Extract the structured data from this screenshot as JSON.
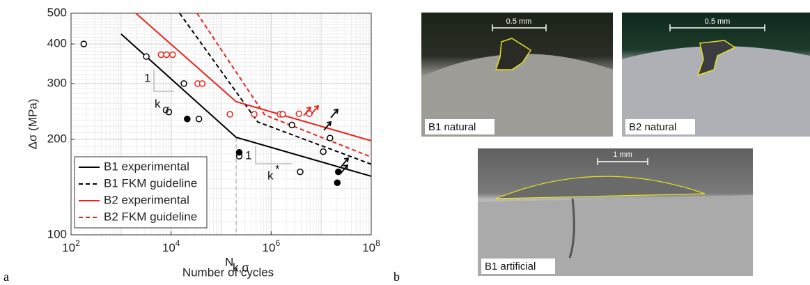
{
  "chart_data": {
    "type": "line",
    "ylabel": "Δσ (MPa)",
    "xlabel": "Number of cycles",
    "xlog": true,
    "ylog": true,
    "grid": true,
    "legend": "lower left",
    "xlim": [
      100,
      100000000
    ],
    "ylim": [
      100,
      500
    ],
    "xticks": [
      {
        "value": 100,
        "label": "10^2"
      },
      {
        "value": 10000,
        "label": "10^4"
      },
      {
        "value": 1000000,
        "label": "10^6"
      },
      {
        "value": 100000000,
        "label": "10^8"
      }
    ],
    "yticks": [
      100,
      200,
      300,
      400,
      500
    ],
    "series": [
      {
        "name": "B1 experimental",
        "color": "#000000",
        "dash": false,
        "x": [
          1000,
          200000,
          100000000
        ],
        "values": [
          430,
          203,
          153
        ]
      },
      {
        "name": "B1 FKM guideline",
        "color": "#000000",
        "dash": true,
        "x": [
          14800,
          540000,
          100000000
        ],
        "values": [
          500,
          227,
          167
        ]
      },
      {
        "name": "B2 experimental",
        "color": "#e8231c",
        "dash": false,
        "x": [
          1970,
          200000,
          100000000
        ],
        "values": [
          500,
          263,
          198
        ]
      },
      {
        "name": "B2 FKM guideline",
        "color": "#e8231c",
        "dash": true,
        "x": [
          33000,
          740000,
          100000000
        ],
        "values": [
          500,
          239,
          176
        ]
      }
    ],
    "points": [
      {
        "color": "#000000",
        "filled": false,
        "x": [
          180,
          3200,
          18000,
          9000,
          36000,
          230000,
          2600000,
          3800000,
          11000000,
          15000000
        ],
        "values": [
          400,
          365,
          300,
          244,
          232,
          177,
          222,
          158,
          183,
          202
        ]
      },
      {
        "color": "#000000",
        "filled": true,
        "x": [
          21000,
          230000,
          22000000,
          21000000
        ],
        "values": [
          232,
          182,
          158,
          146
        ]
      },
      {
        "color": "#e8231c",
        "filled": false,
        "x": [
          6300,
          8100,
          10700,
          34000,
          42000,
          150000,
          460000,
          1500000,
          1700000,
          3600000,
          5800000
        ],
        "values": [
          370,
          370,
          370,
          300,
          300,
          240,
          240,
          240,
          240,
          241,
          241
        ]
      }
    ],
    "annotations": [
      {
        "text": "1"
      },
      {
        "text": "k",
        "sub": "σ"
      },
      {
        "text": "1"
      },
      {
        "text": "k",
        "sup": "*"
      },
      {
        "text": "N",
        "sub": "k,σ"
      }
    ]
  },
  "panels": [
    "a",
    "b"
  ],
  "photos": [
    {
      "label": "B1 natural",
      "scale": "0.5 mm"
    },
    {
      "label": "B2 natural",
      "scale": "0.5 mm"
    },
    {
      "label": "B1 artificial",
      "scale": "1 mm"
    }
  ]
}
